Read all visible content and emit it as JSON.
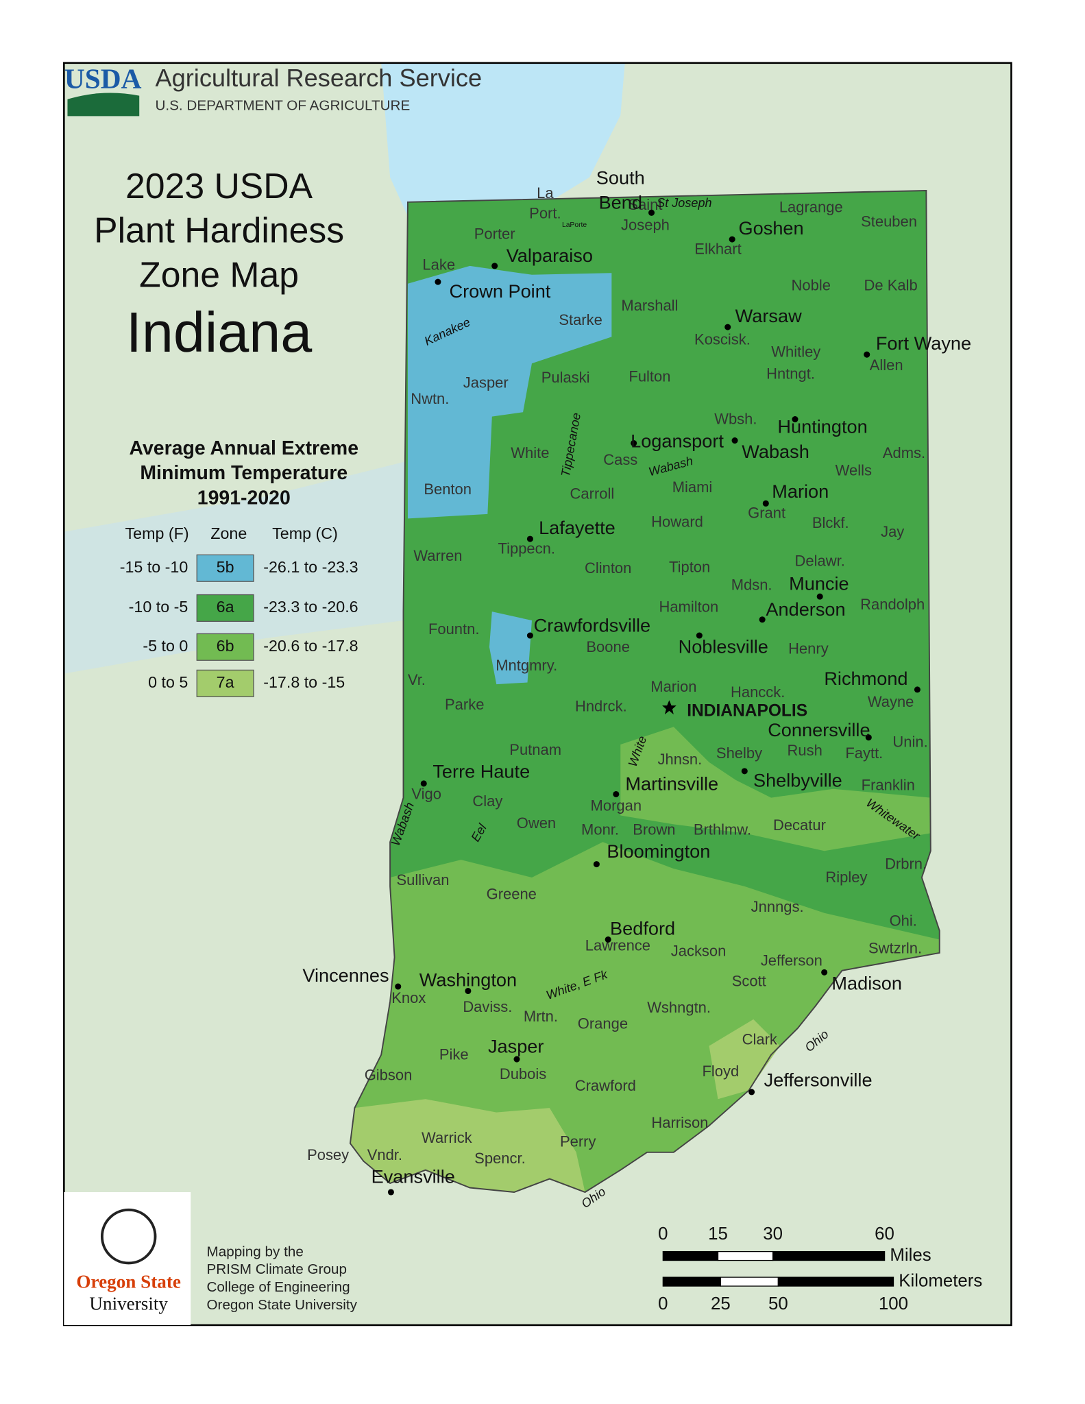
{
  "header": {
    "logo": "USDA",
    "agency": "Agricultural Research Service",
    "department": "U.S. DEPARTMENT OF AGRICULTURE"
  },
  "title": {
    "line1": "2023 USDA",
    "line2": "Plant Hardiness",
    "line3": "Zone Map",
    "state": "Indiana"
  },
  "legend": {
    "title": [
      "Average Annual Extreme",
      "Minimum Temperature",
      "1991-2020"
    ],
    "columns": [
      "Temp (F)",
      "Zone",
      "Temp (C)"
    ],
    "rows": [
      {
        "f": "-15 to -10",
        "zone": "5b",
        "c": "-26.1 to -23.3",
        "color": "#62b8d4"
      },
      {
        "f": "-10 to -5",
        "zone": "6a",
        "c": "-23.3 to -20.6",
        "color": "#45a648"
      },
      {
        "f": "-5 to 0",
        "zone": "6b",
        "c": "-20.6 to -17.8",
        "color": "#72bb52"
      },
      {
        "f": "0 to 5",
        "zone": "7a",
        "c": "-17.8 to -15",
        "color": "#a3cc6c"
      }
    ]
  },
  "counties": [
    "Lake",
    "Porter",
    [
      "La",
      "Port."
    ],
    [
      "Saint",
      "Joseph"
    ],
    "Elkhart",
    "Lagrange",
    "Steuben",
    "Noble",
    "De Kalb",
    "Starke",
    "Marshall",
    "Koscisk.",
    "Whitley",
    "Allen",
    "Nwtn.",
    "Jasper",
    "Pulaski",
    "Fulton",
    "Hntngt.",
    "Wbsh.",
    "White",
    "Cass",
    "Miami",
    "Wells",
    "Adms.",
    "Benton",
    "Carroll",
    "Grant",
    "Blckf.",
    "Jay",
    "Howard",
    "Warren",
    "Tippecn.",
    "Clinton",
    "Tipton",
    "Delawr.",
    "Mdsn.",
    "Randolph",
    "Hamilton",
    "Fountn.",
    "Boone",
    "Henry",
    "Mntgmry.",
    "Vr.",
    "Marion",
    "Hancck.",
    "Wayne",
    "Parke",
    "Hndrck.",
    "Unin.",
    "Putnam",
    "Rush",
    "Faytt.",
    "Shelby",
    "Jhnsn.",
    "Franklin",
    "Vigo",
    "Clay",
    "Morgan",
    "Owen",
    "Monr.",
    "Brown",
    "Brthlmw.",
    "Decatur",
    "Sullivan",
    "Ripley",
    "Drbrn.",
    "Greene",
    "Jnnngs.",
    "Ohi.",
    "Lawrence",
    "Jackson",
    "Swtzrln.",
    "Jefferson",
    "Scott",
    "Knox",
    "Daviss.",
    "Mrtn.",
    "Wshngtn.",
    "Orange",
    "Clark",
    "Pike",
    "Gibson",
    "Dubois",
    "Crawford",
    "Floyd",
    "Harrison",
    "Warrick",
    "Perry",
    "Posey",
    "Vndr.",
    "Spencr."
  ],
  "cities": [
    [
      "South",
      "Bend"
    ],
    "Goshen",
    "Valparaiso",
    "Crown Point",
    "Warsaw",
    "Fort Wayne",
    "Huntington",
    "Logansport",
    "Wabash",
    "Marion",
    "Lafayette",
    "Muncie",
    "Anderson",
    "Crawfordsville",
    "Noblesville",
    "Richmond",
    "INDIANAPOLIS",
    "Connersville",
    "Terre Haute",
    "Martinsville",
    "Shelbyville",
    "Bloomington",
    "Bedford",
    "Vincennes",
    "Washington",
    "Madison",
    "Jasper",
    "Jeffersonville",
    "Evansville",
    "LaPorte"
  ],
  "rivers": [
    "St Joseph",
    "Kanakee",
    "Tippecanoe",
    "Wabash",
    "White",
    "Wabash",
    "Eel",
    "Whitewater",
    "White, E Fk",
    "Ohio",
    "Ohio"
  ],
  "scale": {
    "miles": [
      "0",
      "15",
      "30",
      "60"
    ],
    "miles_label": "Miles",
    "km": [
      "0",
      "25",
      "50",
      "100"
    ],
    "km_label": "Kilometers"
  },
  "credits": {
    "university": [
      "Oregon State",
      "University"
    ],
    "lines": [
      "Mapping by the",
      "PRISM Climate Group",
      "College of Engineering",
      "Oregon State University"
    ]
  }
}
